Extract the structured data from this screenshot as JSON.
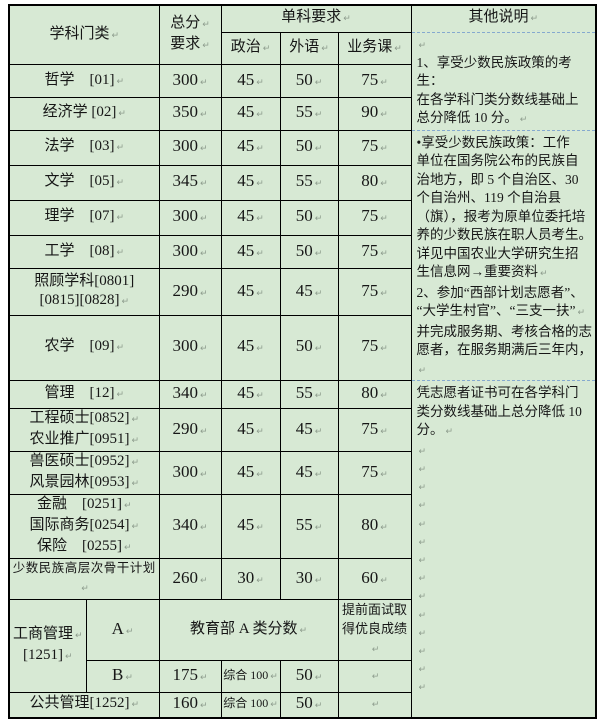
{
  "pilcrow": "↵",
  "colors": {
    "table_background": "#d7e9d4",
    "border": "#000000",
    "dashed_gridline": "#85a9cf",
    "pilcrow_mark": "#8d9c8d",
    "text": "#161616"
  },
  "header": {
    "subject": [
      "学科门类↵"
    ],
    "total": [
      "总分↵",
      "要求↵"
    ],
    "single": [
      "单科要求↵"
    ],
    "politics": [
      "政治↵"
    ],
    "foreign": [
      "外语↵"
    ],
    "course": [
      "业务课↵"
    ],
    "notes_title": [
      "其他说明↵"
    ]
  },
  "rows": [
    {
      "name": [
        "哲学　[01]↵"
      ],
      "total": [
        "300↵"
      ],
      "politics": [
        "45↵"
      ],
      "foreign": [
        "50↵"
      ],
      "course": [
        "75↵"
      ]
    },
    {
      "name": [
        "经济学 [02]↵"
      ],
      "total": [
        "350↵"
      ],
      "politics": [
        "45↵"
      ],
      "foreign": [
        "55↵"
      ],
      "course": [
        "90↵"
      ]
    },
    {
      "name": [
        "法学　[03]↵"
      ],
      "total": [
        "300↵"
      ],
      "politics": [
        "45↵"
      ],
      "foreign": [
        "50↵"
      ],
      "course": [
        "75↵"
      ]
    },
    {
      "name": [
        "文学　[05]↵"
      ],
      "total": [
        "345↵"
      ],
      "politics": [
        "45↵"
      ],
      "foreign": [
        "55↵"
      ],
      "course": [
        "80↵"
      ]
    },
    {
      "name": [
        "理学　[07]↵"
      ],
      "total": [
        "300↵"
      ],
      "politics": [
        "45↵"
      ],
      "foreign": [
        "50↵"
      ],
      "course": [
        "75↵"
      ]
    },
    {
      "name": [
        "工学　[08]↵"
      ],
      "total": [
        "300↵"
      ],
      "politics": [
        "45↵"
      ],
      "foreign": [
        "50↵"
      ],
      "course": [
        "75↵"
      ]
    },
    {
      "name": [
        "照顾学科[0801]",
        "[0815][0828]↵"
      ],
      "total": [
        "290↵"
      ],
      "politics": [
        "45↵"
      ],
      "foreign": [
        "45↵"
      ],
      "course": [
        "75↵"
      ]
    },
    {
      "name": [
        "农学　[09]↵"
      ],
      "total": [
        "300↵"
      ],
      "politics": [
        "45↵"
      ],
      "foreign": [
        "50↵"
      ],
      "course": [
        "75↵"
      ]
    },
    {
      "name": [
        "管理　[12]↵"
      ],
      "total": [
        "340↵"
      ],
      "politics": [
        "45↵"
      ],
      "foreign": [
        "55↵"
      ],
      "course": [
        "80↵"
      ]
    },
    {
      "name": [
        "工程硕士[0852]↵",
        "农业推广[0951]↵"
      ],
      "total": [
        "290↵"
      ],
      "politics": [
        "45↵"
      ],
      "foreign": [
        "45↵"
      ],
      "course": [
        "75↵"
      ]
    },
    {
      "name": [
        "兽医硕士[0952]↵",
        "风景园林[0953]↵"
      ],
      "total": [
        "300↵"
      ],
      "politics": [
        "45↵"
      ],
      "foreign": [
        "45↵"
      ],
      "course": [
        "75↵"
      ]
    },
    {
      "name": [
        "金融　[0251]↵",
        "国际商务[0254]↵",
        "保险　[0255]↵"
      ],
      "total": [
        "340↵"
      ],
      "politics": [
        "45↵"
      ],
      "foreign": [
        "55↵"
      ],
      "course": [
        "80↵"
      ]
    },
    {
      "name": [
        "少数民族高层次骨干计划↵"
      ],
      "total": [
        "260↵"
      ],
      "politics": [
        "30↵"
      ],
      "foreign": [
        "30↵"
      ],
      "course": [
        "60↵"
      ]
    }
  ],
  "mba": {
    "name": [
      "工商管理↵",
      "[1251]↵"
    ],
    "row_a_label": [
      "A↵"
    ],
    "row_a_score": [
      "教育部 A 类分数↵"
    ],
    "row_a_note": [
      "提前面试取得优良成绩↵"
    ],
    "row_b_label": [
      "B↵"
    ],
    "row_b_total": [
      "175↵"
    ],
    "row_b_politics": [
      "综合 100↵"
    ],
    "row_b_foreign": [
      "50↵"
    ],
    "row_b_course": [
      "↵"
    ]
  },
  "public_admin": {
    "name": [
      "公共管理[1252]↵"
    ],
    "total": [
      "160↵"
    ],
    "politics": [
      "综合 100↵"
    ],
    "foreign": [
      "50↵"
    ],
    "course": [
      "↵"
    ]
  },
  "notes": {
    "block1": [
      "↵",
      "1、享受少数民族政策的考生：",
      "在各学科门类分数线基础上",
      "总分降低 10 分。↵"
    ],
    "block2": [
      " •享受少数民族政策：工作",
      "单位在国务院公布的民族自",
      "治地方，即 5 个自治区、30",
      "个自治州、119 个自治县",
      "（旗），报考为原单位委托培",
      "养的少数民族在职人员考生。",
      "详见中国农业大学研究生招",
      "生信息网→重要资料↵",
      "2、参加“西部计划志愿者”、",
      "“大学生村官”、“三支一扶”↵",
      "并完成服务期、考核合格的志",
      "愿者，在服务期满后三年内，↵"
    ],
    "block3": [
      "凭志愿者证书可在各学科门",
      "类分数线基础上总分降低 10",
      "分。↵",
      "↵",
      "↵",
      "↵",
      "↵",
      "↵",
      "↵",
      "↵",
      "↵",
      "↵",
      "↵",
      "↵",
      "↵",
      "↵",
      "↵"
    ]
  }
}
